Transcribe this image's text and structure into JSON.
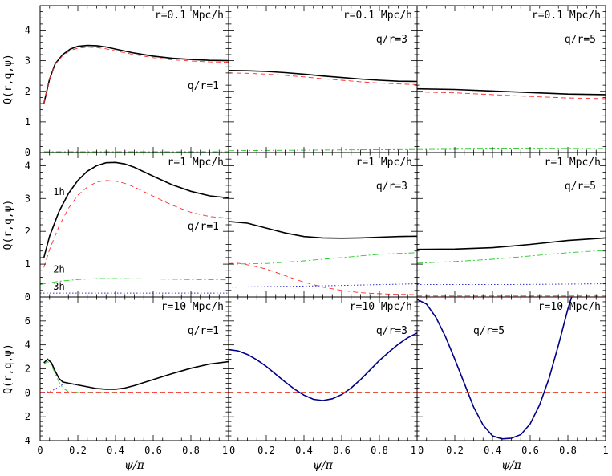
{
  "chart_data": [
    {
      "type": "line",
      "row": 0,
      "col": 0,
      "ylim": [
        0,
        4.8
      ],
      "yticks": [
        0,
        1,
        2,
        3,
        4
      ],
      "title": "r=0.1 Mpc/h",
      "title2": "q/r=1",
      "title2_pos": "low",
      "series": [
        {
          "style": "solid",
          "x": [
            0.02,
            0.05,
            0.08,
            0.12,
            0.16,
            0.2,
            0.25,
            0.3,
            0.35,
            0.4,
            0.5,
            0.6,
            0.7,
            0.8,
            0.9,
            1.0
          ],
          "y": [
            1.6,
            2.4,
            2.9,
            3.2,
            3.38,
            3.47,
            3.5,
            3.49,
            3.45,
            3.38,
            3.25,
            3.15,
            3.08,
            3.04,
            3.01,
            3.0
          ]
        },
        {
          "style": "dashed",
          "x": [
            0.02,
            0.05,
            0.08,
            0.12,
            0.16,
            0.2,
            0.25,
            0.3,
            0.35,
            0.4,
            0.5,
            0.6,
            0.7,
            0.8,
            0.9,
            1.0
          ],
          "y": [
            1.6,
            2.4,
            2.88,
            3.17,
            3.33,
            3.41,
            3.44,
            3.43,
            3.39,
            3.32,
            3.2,
            3.1,
            3.03,
            2.99,
            2.96,
            2.95
          ]
        },
        {
          "style": "dashdot",
          "x": [
            0.02,
            0.5,
            1.0
          ],
          "y": [
            0.03,
            0.03,
            0.03
          ]
        }
      ]
    },
    {
      "type": "line",
      "row": 0,
      "col": 1,
      "ylim": [
        0,
        4.8
      ],
      "yticks": [
        0,
        1,
        2,
        3,
        4
      ],
      "title": "r=0.1 Mpc/h",
      "title2": "q/r=3",
      "title2_pos": "high",
      "series": [
        {
          "style": "solid",
          "x": [
            0,
            0.1,
            0.2,
            0.3,
            0.4,
            0.5,
            0.6,
            0.7,
            0.8,
            0.9,
            1.0
          ],
          "y": [
            2.68,
            2.67,
            2.65,
            2.61,
            2.56,
            2.5,
            2.45,
            2.4,
            2.36,
            2.33,
            2.32
          ]
        },
        {
          "style": "dashed",
          "x": [
            0,
            0.1,
            0.2,
            0.3,
            0.4,
            0.5,
            0.6,
            0.7,
            0.8,
            0.9,
            1.0
          ],
          "y": [
            2.6,
            2.59,
            2.56,
            2.52,
            2.47,
            2.41,
            2.36,
            2.31,
            2.27,
            2.24,
            2.22
          ]
        },
        {
          "style": "dashdot",
          "x": [
            0,
            0.5,
            1.0
          ],
          "y": [
            0.06,
            0.08,
            0.1
          ]
        }
      ]
    },
    {
      "type": "line",
      "row": 0,
      "col": 2,
      "ylim": [
        0,
        4.8
      ],
      "yticks": [
        0,
        1,
        2,
        3,
        4
      ],
      "title": "r=0.1 Mpc/h",
      "title2": "q/r=5",
      "title2_pos": "high",
      "series": [
        {
          "style": "solid",
          "x": [
            0,
            0.2,
            0.4,
            0.6,
            0.8,
            1.0
          ],
          "y": [
            2.08,
            2.06,
            2.01,
            1.96,
            1.91,
            1.89
          ]
        },
        {
          "style": "dashed",
          "x": [
            0,
            0.2,
            0.4,
            0.6,
            0.8,
            1.0
          ],
          "y": [
            1.98,
            1.95,
            1.89,
            1.83,
            1.78,
            1.76
          ]
        },
        {
          "style": "dashdot",
          "x": [
            0,
            0.5,
            1.0
          ],
          "y": [
            0.1,
            0.12,
            0.13
          ]
        }
      ]
    },
    {
      "type": "line",
      "row": 1,
      "col": 0,
      "ylim": [
        0,
        4.4
      ],
      "yticks": [
        0,
        1,
        2,
        3,
        4
      ],
      "title": "r=1 Mpc/h",
      "title2": "q/r=1",
      "title2_pos": "low",
      "annotations": [
        {
          "text": "1h",
          "x": 0.1,
          "y": 3.1
        },
        {
          "text": "2h",
          "x": 0.1,
          "y": 0.75
        },
        {
          "text": "3h",
          "x": 0.1,
          "y": 0.22
        }
      ],
      "series": [
        {
          "style": "solid",
          "x": [
            0.02,
            0.05,
            0.1,
            0.15,
            0.2,
            0.25,
            0.3,
            0.35,
            0.4,
            0.45,
            0.5,
            0.6,
            0.7,
            0.8,
            0.9,
            1.0
          ],
          "y": [
            1.2,
            1.85,
            2.6,
            3.15,
            3.55,
            3.83,
            4.0,
            4.09,
            4.1,
            4.05,
            3.95,
            3.68,
            3.42,
            3.22,
            3.08,
            3.02
          ]
        },
        {
          "style": "dashed",
          "x": [
            0.02,
            0.05,
            0.1,
            0.15,
            0.2,
            0.25,
            0.3,
            0.35,
            0.4,
            0.45,
            0.5,
            0.6,
            0.7,
            0.8,
            0.9,
            1.0
          ],
          "y": [
            0.9,
            1.45,
            2.15,
            2.7,
            3.1,
            3.35,
            3.5,
            3.55,
            3.53,
            3.46,
            3.35,
            3.07,
            2.8,
            2.58,
            2.45,
            2.4
          ]
        },
        {
          "style": "dashdot",
          "x": [
            0,
            0.1,
            0.2,
            0.3,
            0.4,
            0.6,
            0.8,
            1.0
          ],
          "y": [
            0.38,
            0.48,
            0.53,
            0.56,
            0.56,
            0.55,
            0.53,
            0.52
          ]
        },
        {
          "style": "dotted",
          "x": [
            0,
            0.5,
            1.0
          ],
          "y": [
            0.12,
            0.12,
            0.12
          ]
        }
      ]
    },
    {
      "type": "line",
      "row": 1,
      "col": 1,
      "ylim": [
        0,
        4.4
      ],
      "yticks": [
        0,
        1,
        2,
        3,
        4
      ],
      "title": "r=1 Mpc/h",
      "title2": "q/r=3",
      "title2_pos": "high",
      "series": [
        {
          "style": "solid",
          "x": [
            0,
            0.1,
            0.2,
            0.3,
            0.4,
            0.5,
            0.6,
            0.7,
            0.8,
            0.9,
            1.0
          ],
          "y": [
            2.3,
            2.25,
            2.1,
            1.95,
            1.84,
            1.8,
            1.79,
            1.8,
            1.82,
            1.84,
            1.85
          ]
        },
        {
          "style": "dashed",
          "x": [
            0,
            0.05,
            0.1,
            0.2,
            0.3,
            0.4,
            0.5,
            0.6,
            0.7,
            0.8,
            0.9,
            1.0
          ],
          "y": [
            1.02,
            1.03,
            0.98,
            0.85,
            0.65,
            0.45,
            0.3,
            0.2,
            0.13,
            0.1,
            0.08,
            0.07
          ]
        },
        {
          "style": "dashdot",
          "x": [
            0,
            0.2,
            0.4,
            0.6,
            0.8,
            1.0
          ],
          "y": [
            1.0,
            1.02,
            1.1,
            1.2,
            1.3,
            1.35
          ]
        },
        {
          "style": "dotted",
          "x": [
            0,
            0.5,
            1.0
          ],
          "y": [
            0.3,
            0.34,
            0.4
          ]
        }
      ]
    },
    {
      "type": "line",
      "row": 1,
      "col": 2,
      "ylim": [
        0,
        4.4
      ],
      "yticks": [
        0,
        1,
        2,
        3,
        4
      ],
      "title": "r=1 Mpc/h",
      "title2": "q/r=5",
      "title2_pos": "high",
      "series": [
        {
          "style": "solid",
          "x": [
            0,
            0.2,
            0.4,
            0.6,
            0.8,
            1.0
          ],
          "y": [
            1.45,
            1.46,
            1.5,
            1.6,
            1.72,
            1.8
          ]
        },
        {
          "style": "dashed",
          "x": [
            0,
            0.5,
            1.0
          ],
          "y": [
            0.03,
            0.03,
            0.03
          ]
        },
        {
          "style": "dashdot",
          "x": [
            0,
            0.2,
            0.4,
            0.6,
            0.8,
            1.0
          ],
          "y": [
            1.03,
            1.08,
            1.15,
            1.25,
            1.35,
            1.42
          ]
        },
        {
          "style": "dotted",
          "x": [
            0,
            0.5,
            1.0
          ],
          "y": [
            0.38,
            0.38,
            0.4
          ]
        }
      ]
    },
    {
      "type": "line",
      "row": 2,
      "col": 0,
      "ylim": [
        -4,
        8
      ],
      "yticks": [
        -4,
        -2,
        0,
        2,
        4,
        6
      ],
      "title": "r=10 Mpc/h",
      "title2": "q/r=1",
      "title2_pos": "high",
      "xlabel": "ψ/π",
      "xticks": [
        0,
        0.2,
        0.4,
        0.6,
        0.8,
        1
      ],
      "series": [
        {
          "style": "solid",
          "x": [
            0.02,
            0.04,
            0.06,
            0.08,
            0.1,
            0.12,
            0.15,
            0.2,
            0.3,
            0.35,
            0.4,
            0.45,
            0.5,
            0.6,
            0.7,
            0.8,
            0.9,
            1.0
          ],
          "y": [
            2.5,
            2.8,
            2.5,
            1.8,
            1.2,
            0.9,
            0.8,
            0.65,
            0.35,
            0.3,
            0.3,
            0.4,
            0.6,
            1.1,
            1.6,
            2.05,
            2.4,
            2.6
          ]
        },
        {
          "style": "dashed",
          "x": [
            0,
            0.5,
            1.0
          ],
          "y": [
            0.05,
            0.05,
            0.05
          ]
        },
        {
          "style": "dashdot",
          "x": [
            0.02,
            0.04,
            0.06,
            0.08,
            0.1,
            0.12,
            0.15,
            0.2,
            0.5,
            1.0
          ],
          "y": [
            2.4,
            2.6,
            2.3,
            1.6,
            0.9,
            0.4,
            0.1,
            0.02,
            0.0,
            0.0
          ]
        },
        {
          "style": "dotted",
          "x": [
            0.02,
            0.05,
            0.08,
            0.1,
            0.12,
            0.15,
            0.2
          ],
          "y": [
            0.0,
            0.1,
            0.3,
            0.5,
            0.7,
            0.75,
            0.65
          ]
        }
      ]
    },
    {
      "type": "line",
      "row": 2,
      "col": 1,
      "ylim": [
        -4,
        8
      ],
      "yticks": [
        -4,
        -2,
        0,
        2,
        4,
        6
      ],
      "title": "r=10 Mpc/h",
      "title2": "q/r=3",
      "title2_pos": "high",
      "xlabel": "ψ/π",
      "xticks": [
        0,
        0.2,
        0.4,
        0.6,
        0.8,
        1
      ],
      "series": [
        {
          "style": "solid",
          "x": [
            0,
            0.05,
            0.1,
            0.15,
            0.2,
            0.25,
            0.3,
            0.35,
            0.4,
            0.45,
            0.5,
            0.55,
            0.6,
            0.65,
            0.7,
            0.75,
            0.8,
            0.85,
            0.9,
            0.95,
            1.0
          ],
          "y": [
            3.6,
            3.5,
            3.2,
            2.75,
            2.2,
            1.55,
            0.9,
            0.3,
            -0.2,
            -0.55,
            -0.65,
            -0.5,
            -0.15,
            0.4,
            1.1,
            1.9,
            2.7,
            3.4,
            4.05,
            4.6,
            5.0
          ]
        },
        {
          "style": "dashed",
          "x": [
            0,
            0.5,
            1.0
          ],
          "y": [
            0.05,
            0.05,
            0.05
          ]
        },
        {
          "style": "dashdot",
          "x": [
            0,
            0.5,
            1.0
          ],
          "y": [
            0.0,
            0.0,
            0.0
          ]
        }
      ]
    },
    {
      "type": "line",
      "row": 2,
      "col": 2,
      "ylim": [
        -4,
        8
      ],
      "yticks": [
        -4,
        -2,
        0,
        2,
        4,
        6
      ],
      "title": "r=10 Mpc/h",
      "title2": "q/r=5",
      "title2_pos": "left",
      "xlabel": "ψ/π",
      "xticks": [
        0,
        0.2,
        0.4,
        0.6,
        0.8,
        1
      ],
      "series": [
        {
          "style": "solid",
          "x": [
            0,
            0.05,
            0.1,
            0.15,
            0.2,
            0.25,
            0.3,
            0.35,
            0.4,
            0.45,
            0.5,
            0.55,
            0.6,
            0.65,
            0.7,
            0.75,
            0.8,
            0.82
          ],
          "y": [
            7.8,
            7.4,
            6.3,
            4.7,
            2.8,
            0.8,
            -1.2,
            -2.7,
            -3.6,
            -3.85,
            -3.8,
            -3.5,
            -2.6,
            -1.0,
            1.2,
            4.0,
            7.0,
            8.0
          ]
        },
        {
          "style": "dashed",
          "x": [
            0,
            0.5,
            1.0
          ],
          "y": [
            0.05,
            0.05,
            0.05
          ]
        },
        {
          "style": "dashdot",
          "x": [
            0,
            0.5,
            1.0
          ],
          "y": [
            0.0,
            0.0,
            0.0
          ]
        }
      ]
    }
  ],
  "ylabel": "Q(r,q,ψ)",
  "colors": {
    "solid": "#000000",
    "dashed": "#ff2a2a",
    "dashdot": "#22cc22",
    "dotted": "#3333cc",
    "overlay": "#000088"
  }
}
